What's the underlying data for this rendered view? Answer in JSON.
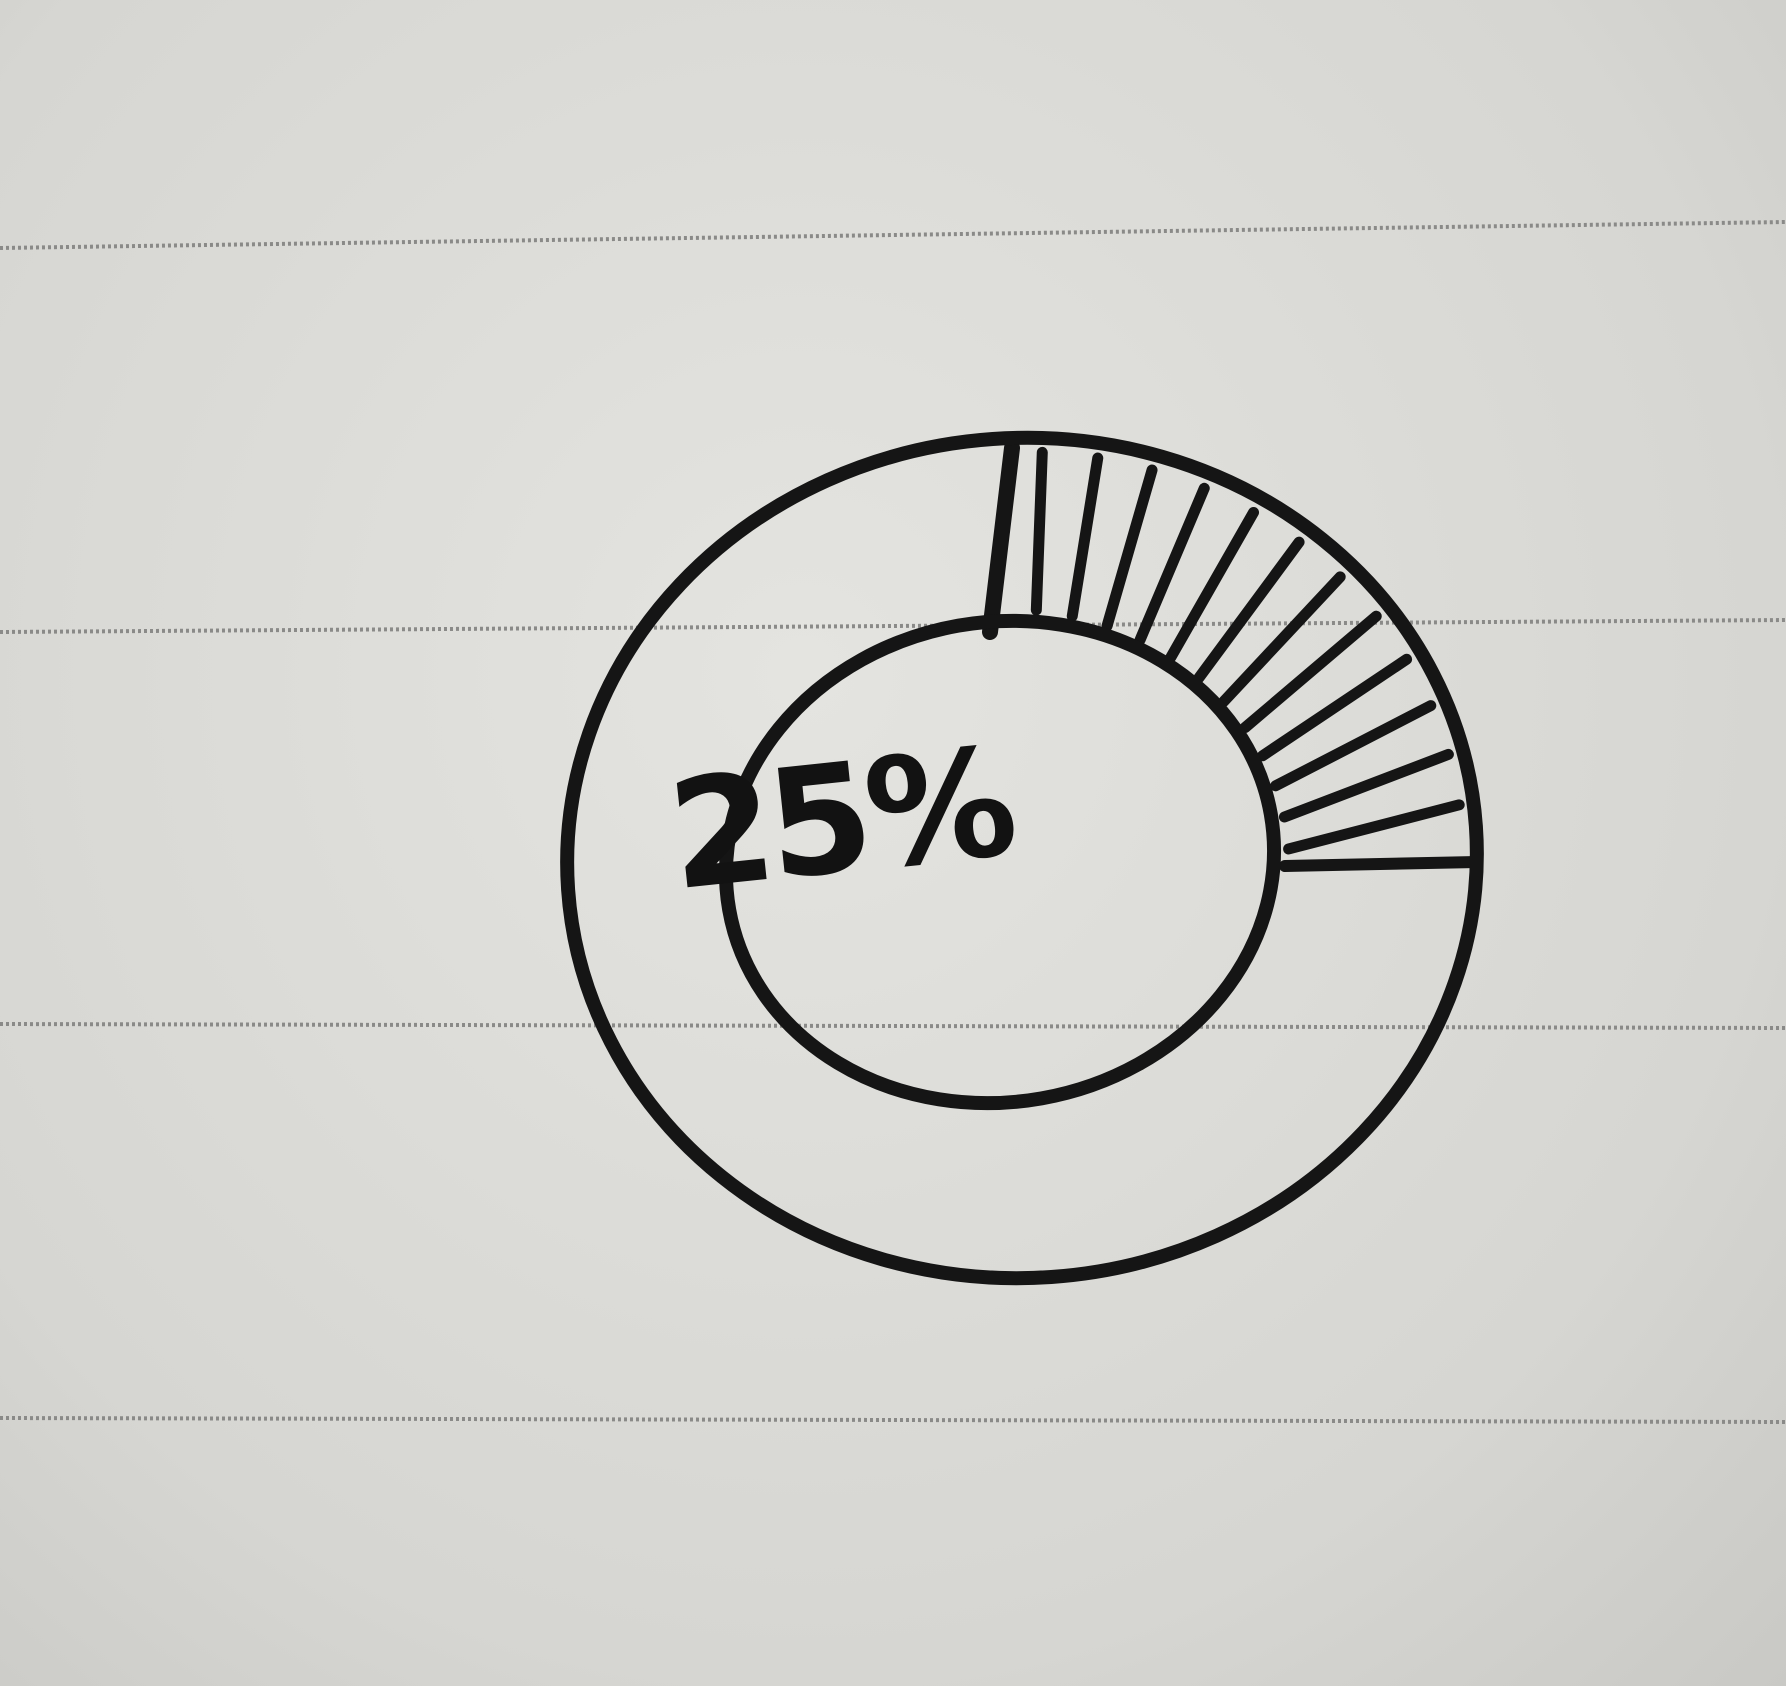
{
  "chart_data": {
    "type": "pie",
    "style": "donut",
    "slices": [
      {
        "value": 25,
        "fill": "hatched"
      },
      {
        "value": 75,
        "fill": "blank"
      }
    ],
    "center_label": "25%",
    "start": "12 o'clock",
    "direction": "clockwise"
  },
  "colors": {
    "paper": "#dcdcd8",
    "ruled_line": "#8a8a88",
    "ink": "#151515"
  }
}
